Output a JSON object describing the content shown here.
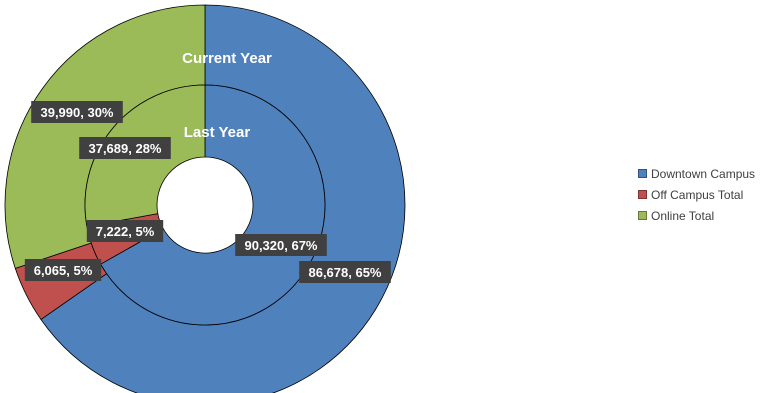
{
  "chart_data": {
    "type": "pie",
    "subtype": "doughnut",
    "title": "",
    "legend_position": "right",
    "categories": [
      "Downtown Campus",
      "Off Campus Total",
      "Online Total"
    ],
    "colors": [
      "#4f81bd",
      "#c0504d",
      "#9bbb59"
    ],
    "series": [
      {
        "name": "Current Year",
        "ring": "outer",
        "values": [
          86678,
          6065,
          39990
        ],
        "labels": [
          "86,678, 65%",
          "6,065, 5%",
          "39,990, 30%"
        ]
      },
      {
        "name": "Last Year",
        "ring": "inner",
        "values": [
          90320,
          7222,
          37689
        ],
        "labels": [
          "90,320, 67%",
          "7,222, 5%",
          "37,689, 28%"
        ]
      }
    ]
  }
}
